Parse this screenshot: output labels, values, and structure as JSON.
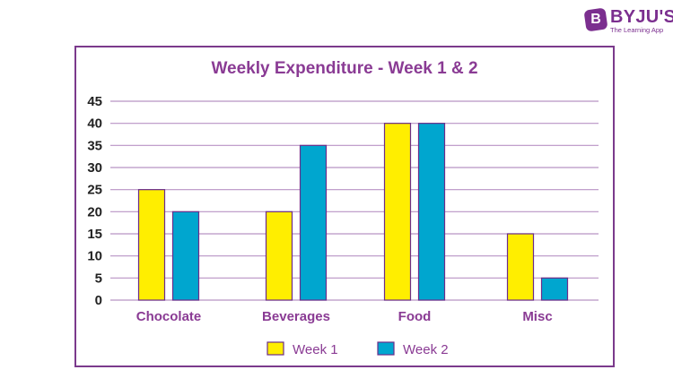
{
  "brand": {
    "name": "BYJU'S",
    "tagline": "The Learning App",
    "color": "#7b2f8f"
  },
  "chart_data": {
    "type": "bar",
    "title": "Weekly Expenditure - Week 1 & 2",
    "categories": [
      "Chocolate",
      "Beverages",
      "Food",
      "Misc"
    ],
    "series": [
      {
        "name": "Week 1",
        "values": [
          25,
          20,
          40,
          15
        ],
        "color": "#ffee00"
      },
      {
        "name": "Week 2",
        "values": [
          20,
          35,
          40,
          5
        ],
        "color": "#00a6cf"
      }
    ],
    "ylim": [
      0,
      45
    ],
    "yticks": [
      "0",
      "5",
      "10",
      "15",
      "20",
      "25",
      "30",
      "35",
      "40",
      "45"
    ],
    "grid": true,
    "legend": "bottom-center",
    "bar_outline_color": "#6b2d8a",
    "grid_color": "#b893c4",
    "text_color": "#8a3b94"
  }
}
